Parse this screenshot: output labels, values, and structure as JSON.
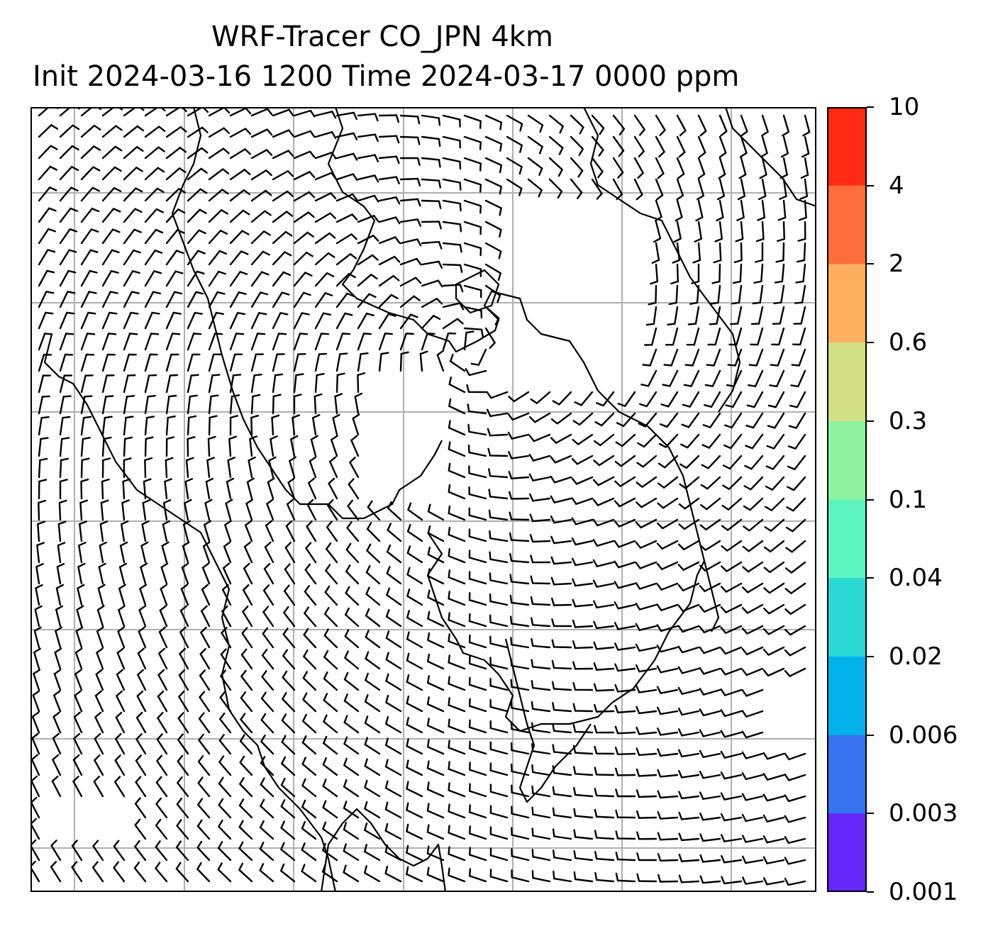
{
  "title": {
    "line1": "WRF-Tracer CO_JPN 4km",
    "line2": "Init 2024-03-16 1200 Time 2024-03-17 0000 ppm"
  },
  "colorbar": {
    "levels": [
      "10",
      "4",
      "2",
      "0.6",
      "0.3",
      "0.1",
      "0.04",
      "0.02",
      "0.006",
      "0.003",
      "0.001"
    ],
    "colors": [
      "#ff2a14",
      "#ff6e3a",
      "#ffae5e",
      "#d2e083",
      "#8ef29e",
      "#5cf5c0",
      "#2ad8d4",
      "#01b2ea",
      "#3673f0",
      "#6428fb"
    ]
  },
  "map": {
    "gridline_color": "#b0b0b0",
    "coastline_color": "#000000",
    "symbols": [
      "wind-barbs",
      "calm-circles"
    ]
  }
}
